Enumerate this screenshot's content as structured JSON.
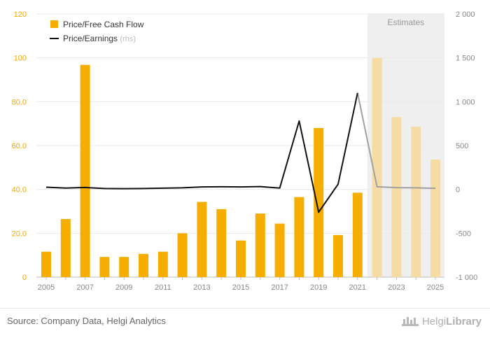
{
  "chart_data": {
    "type": "bar",
    "x": [
      2005,
      2006,
      2007,
      2008,
      2009,
      2010,
      2011,
      2012,
      2013,
      2014,
      2015,
      2016,
      2017,
      2018,
      2019,
      2020,
      2021,
      2022,
      2023,
      2024,
      2025
    ],
    "x_tick_labels": [
      "2005",
      "2007",
      "2009",
      "2011",
      "2013",
      "2015",
      "2017",
      "2019",
      "2021",
      "2023",
      "2025"
    ],
    "series": [
      {
        "name": "Price/Free Cash Flow",
        "type": "bar",
        "axis": "left",
        "color": "#f5ad00",
        "estimate_color": "#f5dca4",
        "values": [
          11.6,
          26.5,
          96.8,
          9.2,
          9.2,
          10.6,
          11.6,
          20.0,
          34.3,
          31.0,
          16.7,
          29.0,
          24.4,
          36.5,
          68.0,
          19.2,
          38.5,
          100.0,
          73.0,
          68.6,
          53.6
        ]
      },
      {
        "name": "Price/Earnings",
        "name_suffix": "(rhs)",
        "type": "line",
        "axis": "right",
        "color": "#111111",
        "estimate_color": "#a0a0a0",
        "values": [
          25,
          15,
          22,
          10,
          8,
          10,
          14,
          18,
          28,
          30,
          28,
          32,
          15,
          780,
          -260,
          60,
          1100,
          30,
          20,
          18,
          12
        ]
      }
    ],
    "estimates": {
      "label": "Estimates",
      "from": 2022,
      "to": 2025
    },
    "y_left": {
      "ylim": [
        0,
        120
      ],
      "ticks": [
        0,
        20,
        40,
        60,
        80,
        100,
        120
      ],
      "tick_labels": [
        "0",
        "20.0",
        "40.0",
        "60.0",
        "80.0",
        "100",
        "120"
      ]
    },
    "y_right": {
      "ylim": [
        -1000,
        2000
      ],
      "ticks": [
        -1000,
        -500,
        0,
        500,
        1000,
        1500,
        2000
      ],
      "tick_labels": [
        "-1 000",
        "-500",
        "0",
        "500",
        "1 000",
        "1 500",
        "2 000"
      ]
    },
    "grid": true,
    "legend_position": "top-left"
  },
  "footer": {
    "source": "Source: Company Data, Helgi Analytics",
    "brand_light": "Helgi",
    "brand_bold": "Library",
    "brand_icon": "helgi-library-logo-icon"
  }
}
